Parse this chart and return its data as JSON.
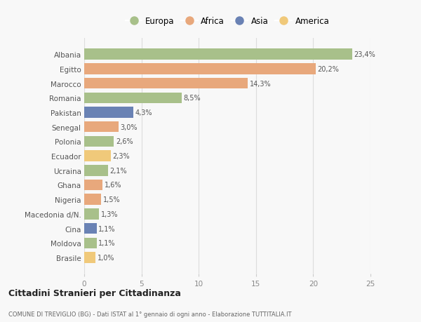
{
  "countries": [
    "Albania",
    "Egitto",
    "Marocco",
    "Romania",
    "Pakistan",
    "Senegal",
    "Polonia",
    "Ecuador",
    "Ucraina",
    "Ghana",
    "Nigeria",
    "Macedonia d/N.",
    "Cina",
    "Moldova",
    "Brasile"
  ],
  "values": [
    23.4,
    20.2,
    14.3,
    8.5,
    4.3,
    3.0,
    2.6,
    2.3,
    2.1,
    1.6,
    1.5,
    1.3,
    1.1,
    1.1,
    1.0
  ],
  "labels": [
    "23,4%",
    "20,2%",
    "14,3%",
    "8,5%",
    "4,3%",
    "3,0%",
    "2,6%",
    "2,3%",
    "2,1%",
    "1,6%",
    "1,5%",
    "1,3%",
    "1,1%",
    "1,1%",
    "1,0%"
  ],
  "continents": [
    "Europa",
    "Africa",
    "Africa",
    "Europa",
    "Asia",
    "Africa",
    "Europa",
    "America",
    "Europa",
    "Africa",
    "Africa",
    "Europa",
    "Asia",
    "Europa",
    "America"
  ],
  "colors": {
    "Europa": "#a8c08a",
    "Africa": "#e8a87c",
    "Asia": "#6a82b4",
    "America": "#f0c97a"
  },
  "legend_order": [
    "Europa",
    "Africa",
    "Asia",
    "America"
  ],
  "title": "Cittadini Stranieri per Cittadinanza",
  "subtitle": "COMUNE DI TREVIGLIO (BG) - Dati ISTAT al 1° gennaio di ogni anno - Elaborazione TUTTITALIA.IT",
  "xlim": [
    0,
    25
  ],
  "xticks": [
    0,
    5,
    10,
    15,
    20,
    25
  ],
  "bg_color": "#f8f8f8",
  "grid_color": "#dddddd",
  "bar_height": 0.75
}
